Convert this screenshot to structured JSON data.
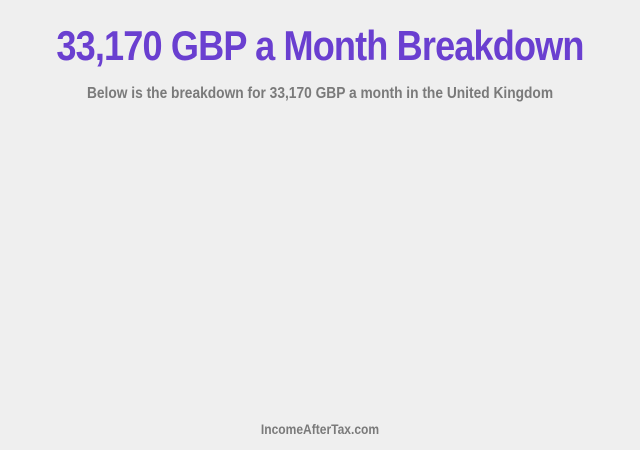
{
  "header": {
    "title": "33,170 GBP a Month Breakdown",
    "subtitle": "Below is the breakdown for 33,170 GBP a month in the United Kingdom"
  },
  "footer": {
    "site": "IncomeAfterTax.com"
  }
}
